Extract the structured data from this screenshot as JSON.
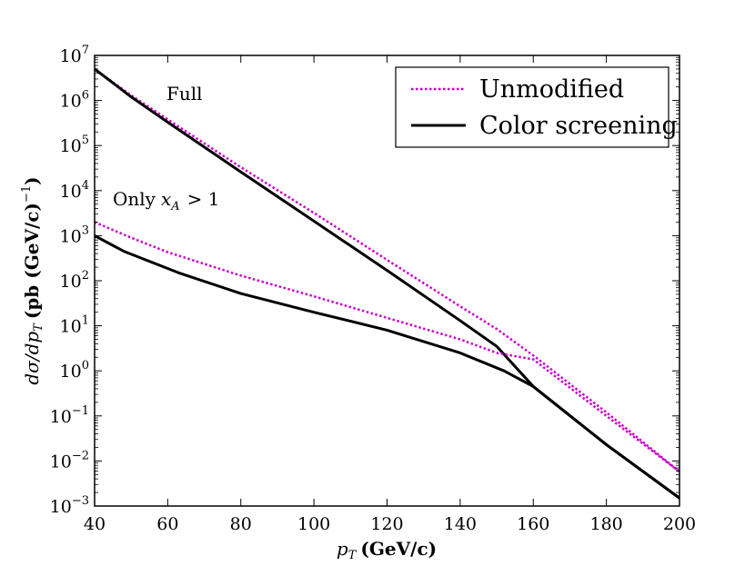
{
  "chart_data": {
    "type": "line",
    "title": "",
    "xlabel_var": "p",
    "xlabel_sub": "T",
    "xlabel_unit": "(GeV/c)",
    "ylabel_text": "dσ/dp",
    "ylabel_sub": "T",
    "ylabel_unit": "(pb (GeV/c)",
    "ylabel_exp": "−1",
    "ylabel_close": ")",
    "xlim": [
      40,
      200
    ],
    "ylim_exp": [
      -3,
      7
    ],
    "yscale": "log",
    "x_ticks": [
      "40",
      "60",
      "80",
      "100",
      "120",
      "140",
      "160",
      "180",
      "200"
    ],
    "y_ticks": [
      {
        "base": "10",
        "exp": "−3"
      },
      {
        "base": "10",
        "exp": "−2"
      },
      {
        "base": "10",
        "exp": "−1"
      },
      {
        "base": "10",
        "exp": "0"
      },
      {
        "base": "10",
        "exp": "1"
      },
      {
        "base": "10",
        "exp": "2"
      },
      {
        "base": "10",
        "exp": "3"
      },
      {
        "base": "10",
        "exp": "4"
      },
      {
        "base": "10",
        "exp": "5"
      },
      {
        "base": "10",
        "exp": "6"
      },
      {
        "base": "10",
        "exp": "7"
      }
    ],
    "legend": {
      "position": "top-right",
      "entries": [
        {
          "label": "Unmodified",
          "style": "dotted",
          "color": "#cc00cc"
        },
        {
          "label": "Color screening",
          "style": "solid",
          "color": "#000000"
        }
      ]
    },
    "annotations": {
      "full": "Full",
      "only_text": "Only",
      "only_var": "x",
      "only_sub": "A",
      "only_rest": "> 1"
    },
    "series": [
      {
        "name": "Full – Unmodified",
        "style": "dotted",
        "color": "#cc00cc",
        "x": [
          40,
          50,
          60,
          80,
          100,
          120,
          140,
          150,
          160,
          180,
          200
        ],
        "y": [
          5000000,
          1300000,
          380000,
          33000,
          3200,
          290,
          27,
          8.5,
          2.2,
          0.12,
          0.0058
        ]
      },
      {
        "name": "Full – Color screening",
        "style": "solid",
        "color": "#000000",
        "x": [
          40,
          50,
          60,
          80,
          100,
          120,
          140,
          150,
          160,
          180,
          200
        ],
        "y": [
          5000000,
          1200000,
          330000,
          26000,
          2100,
          170,
          13,
          3.5,
          0.45,
          0.023,
          0.0015
        ]
      },
      {
        "name": "Only x_A > 1 – Unmodified",
        "style": "dotted",
        "color": "#cc00cc",
        "x": [
          40,
          50,
          60,
          80,
          100,
          120,
          140,
          150,
          160,
          180,
          200
        ],
        "y": [
          2000,
          900,
          430,
          130,
          45,
          15,
          5,
          2.5,
          1.8,
          0.1,
          0.0058
        ]
      },
      {
        "name": "Only x_A > 1 – Color screening",
        "style": "solid",
        "color": "#000000",
        "x": [
          40,
          48,
          63,
          80,
          100,
          120,
          140,
          152,
          160,
          180,
          200
        ],
        "y": [
          1000,
          450,
          150,
          52,
          20,
          8,
          2.5,
          1.0,
          0.45,
          0.023,
          0.0015
        ]
      }
    ]
  }
}
